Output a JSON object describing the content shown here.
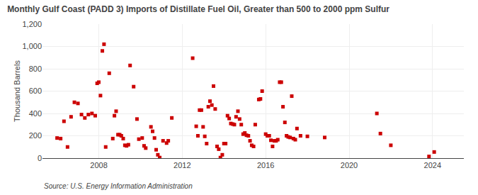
{
  "chart_data": {
    "type": "scatter",
    "title": "Monthly Gulf Coast (PADD 3) Imports of Distillate Fuel Oil, Greater than 500 to 2000 ppm Sulfur",
    "ylabel": "Thousand Barrels",
    "annotations": [
      "Source: U.S. Energy Information Administration"
    ],
    "color": "#cc0000",
    "marker": "square",
    "grid": true,
    "xlim": [
      2005.3,
      2025.5
    ],
    "xticks": [
      2008,
      2012,
      2016,
      2020,
      2024
    ],
    "ylim": [
      0,
      1200
    ],
    "yticks": [
      0,
      200,
      400,
      600,
      800,
      {
        "value": 1000,
        "label": "1,000"
      },
      {
        "value": 1200,
        "label": "1,200"
      }
    ],
    "x": [
      2006.0,
      2006.17,
      2006.33,
      2006.5,
      2006.67,
      2006.83,
      2007.0,
      2007.17,
      2007.33,
      2007.5,
      2007.67,
      2007.83,
      2007.92,
      2008.0,
      2008.08,
      2008.17,
      2008.25,
      2008.33,
      2008.5,
      2008.67,
      2008.75,
      2008.83,
      2008.92,
      2009.0,
      2009.08,
      2009.17,
      2009.25,
      2009.33,
      2009.42,
      2009.5,
      2009.67,
      2009.83,
      2009.92,
      2010.08,
      2010.17,
      2010.25,
      2010.5,
      2010.58,
      2010.67,
      2010.75,
      2010.83,
      2010.92,
      2011.08,
      2011.25,
      2011.33,
      2011.5,
      2012.5,
      2012.67,
      2012.75,
      2012.83,
      2012.92,
      2013.0,
      2013.08,
      2013.17,
      2013.25,
      2013.33,
      2013.42,
      2013.5,
      2013.58,
      2013.67,
      2013.75,
      2013.83,
      2013.92,
      2014.0,
      2014.08,
      2014.17,
      2014.25,
      2014.33,
      2014.42,
      2014.5,
      2014.58,
      2014.67,
      2014.75,
      2014.83,
      2014.92,
      2015.0,
      2015.08,
      2015.17,
      2015.25,
      2015.33,
      2015.42,
      2015.5,
      2015.67,
      2015.75,
      2015.83,
      2016.0,
      2016.08,
      2016.17,
      2016.25,
      2016.33,
      2016.42,
      2016.5,
      2016.58,
      2016.67,
      2016.75,
      2016.83,
      2016.92,
      2017.0,
      2017.08,
      2017.17,
      2017.25,
      2017.33,
      2017.42,
      2017.5,
      2017.67,
      2018.0,
      2018.83,
      2021.33,
      2021.5,
      2022.0,
      2023.83,
      2024.08
    ],
    "values": [
      180,
      175,
      330,
      100,
      370,
      500,
      490,
      390,
      360,
      390,
      400,
      380,
      670,
      680,
      560,
      960,
      1020,
      100,
      760,
      175,
      380,
      420,
      210,
      210,
      200,
      175,
      115,
      110,
      120,
      830,
      640,
      350,
      170,
      180,
      110,
      90,
      280,
      240,
      180,
      75,
      30,
      5,
      155,
      135,
      155,
      360,
      895,
      285,
      200,
      430,
      430,
      280,
      195,
      130,
      460,
      510,
      475,
      645,
      440,
      105,
      80,
      5,
      30,
      130,
      130,
      380,
      355,
      310,
      305,
      300,
      370,
      420,
      350,
      300,
      215,
      225,
      205,
      200,
      155,
      115,
      105,
      300,
      525,
      530,
      600,
      215,
      200,
      200,
      160,
      105,
      155,
      155,
      165,
      680,
      680,
      460,
      320,
      200,
      190,
      185,
      555,
      175,
      165,
      265,
      200,
      195,
      185,
      400,
      220,
      115,
      15,
      55
    ]
  }
}
